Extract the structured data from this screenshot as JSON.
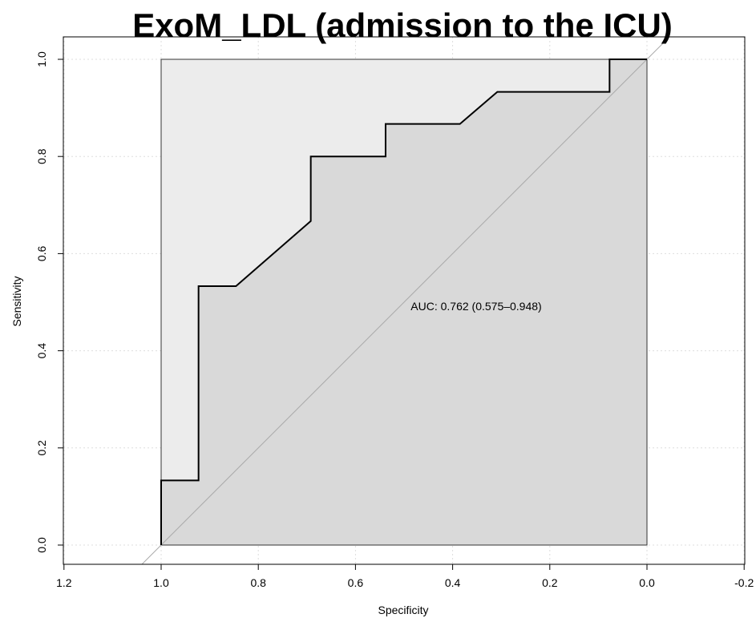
{
  "chart_data": {
    "type": "line",
    "title": "ExoM_LDL (admission to the ICU)",
    "xlabel": "Specificity",
    "ylabel": "Sensitivity",
    "xlim": [
      1.2,
      -0.2
    ],
    "ylim": [
      0.0,
      1.0
    ],
    "x_reversed": true,
    "grid": true,
    "x_ticks": [
      1.2,
      1.0,
      0.8,
      0.6,
      0.4,
      0.2,
      0.0,
      -0.2
    ],
    "x_tick_labels": [
      "1.2",
      "1.0",
      "0.8",
      "0.6",
      "0.4",
      "0.2",
      "0.0",
      "-0.2"
    ],
    "y_ticks": [
      0.0,
      0.2,
      0.4,
      0.6,
      0.8,
      1.0
    ],
    "y_tick_labels": [
      "0.0",
      "0.2",
      "0.4",
      "0.6",
      "0.8",
      "1.0"
    ],
    "annotation": "AUC: 0.762 (0.575–0.948)",
    "auc": 0.762,
    "auc_ci": [
      0.575,
      0.948
    ],
    "colors": {
      "roc_line": "#000000",
      "auc_fill": "#d9d9d9",
      "ci_fill": "#ececec",
      "diagonal": "#aaaaaa",
      "grid": "#dddddd"
    },
    "series": [
      {
        "x": [
          1.0,
          1.0,
          0.923,
          0.923,
          0.846,
          0.692,
          0.692,
          0.538,
          0.538,
          0.385,
          0.308,
          0.077,
          0.077,
          0.0
        ],
        "y": [
          0.0,
          0.133,
          0.133,
          0.533,
          0.533,
          0.667,
          0.8,
          0.8,
          0.867,
          0.867,
          0.933,
          0.933,
          1.0,
          1.0
        ]
      }
    ],
    "reference_line": {
      "x": [
        1.0,
        0.0
      ],
      "y": [
        0.0,
        1.0
      ]
    }
  }
}
